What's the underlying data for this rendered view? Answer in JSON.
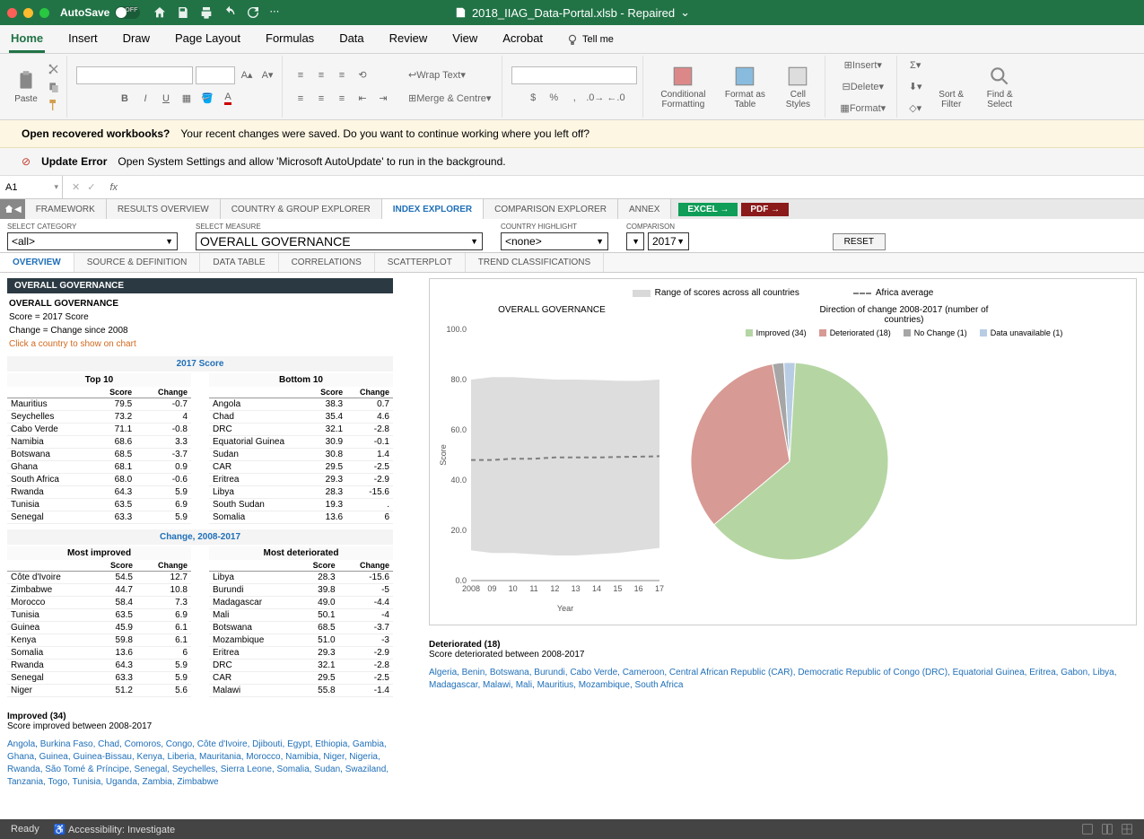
{
  "titlebar": {
    "autosave_label": "AutoSave",
    "doc_title": "2018_IIAG_Data-Portal.xlsb - Repaired"
  },
  "ribbon_tabs": [
    "Home",
    "Insert",
    "Draw",
    "Page Layout",
    "Formulas",
    "Data",
    "Review",
    "View",
    "Acrobat"
  ],
  "tell_me": "Tell me",
  "ribbon": {
    "paste": "Paste",
    "wrap": "Wrap Text",
    "merge": "Merge & Centre",
    "cond_format": "Conditional Formatting",
    "as_table": "Format as Table",
    "cell_styles": "Cell Styles",
    "insert": "Insert",
    "delete": "Delete",
    "format": "Format",
    "sort_filter": "Sort & Filter",
    "find_select": "Find & Select"
  },
  "msg_recover_q": "Open recovered workbooks?",
  "msg_recover_t": "Your recent changes were saved. Do you want to continue working where you left off?",
  "msg_update_h": "Update Error",
  "msg_update_t": "Open System Settings and allow 'Microsoft AutoUpdate' to run in the background.",
  "namebox": "A1",
  "navtabs": [
    "FRAMEWORK",
    "RESULTS OVERVIEW",
    "COUNTRY & GROUP EXPLORER",
    "INDEX EXPLORER",
    "COMPARISON EXPLORER",
    "ANNEX"
  ],
  "nav_active_index": 3,
  "export_excel": "EXCEL →",
  "export_pdf": "PDF →",
  "controls": {
    "cat_label": "SELECT CATEGORY",
    "cat_value": "<all>",
    "measure_label": "SELECT MEASURE",
    "measure_value": "OVERALL GOVERNANCE",
    "country_label": "COUNTRY HIGHLIGHT",
    "country_value": "<none>",
    "compare_label": "COMPARISON",
    "year_value": "2017",
    "reset": "RESET"
  },
  "subtabs": [
    "OVERVIEW",
    "SOURCE & DEFINITION",
    "DATA TABLE",
    "CORRELATIONS",
    "SCATTERPLOT",
    "TREND CLASSIFICATIONS"
  ],
  "black_header": "OVERALL GOVERNANCE",
  "meta": {
    "title": "OVERALL GOVERNANCE",
    "score_line": "Score = 2017 Score",
    "change_line": "Change = Change since 2008",
    "hint": "Click a country to show on chart"
  },
  "score_section": {
    "title": "2017 Score",
    "top_label": "Top 10",
    "bottom_label": "Bottom 10",
    "cols": [
      "",
      "Score",
      "Change"
    ],
    "top": [
      [
        "Mauritius",
        "79.5",
        "-0.7"
      ],
      [
        "Seychelles",
        "73.2",
        "4"
      ],
      [
        "Cabo Verde",
        "71.1",
        "-0.8"
      ],
      [
        "Namibia",
        "68.6",
        "3.3"
      ],
      [
        "Botswana",
        "68.5",
        "-3.7"
      ],
      [
        "Ghana",
        "68.1",
        "0.9"
      ],
      [
        "South Africa",
        "68.0",
        "-0.6"
      ],
      [
        "Rwanda",
        "64.3",
        "5.9"
      ],
      [
        "Tunisia",
        "63.5",
        "6.9"
      ],
      [
        "Senegal",
        "63.3",
        "5.9"
      ]
    ],
    "bottom": [
      [
        "Angola",
        "38.3",
        "0.7"
      ],
      [
        "Chad",
        "35.4",
        "4.6"
      ],
      [
        "DRC",
        "32.1",
        "-2.8"
      ],
      [
        "Equatorial Guinea",
        "30.9",
        "-0.1"
      ],
      [
        "Sudan",
        "30.8",
        "1.4"
      ],
      [
        "CAR",
        "29.5",
        "-2.5"
      ],
      [
        "Eritrea",
        "29.3",
        "-2.9"
      ],
      [
        "Libya",
        "28.3",
        "-15.6"
      ],
      [
        "South Sudan",
        "19.3",
        "."
      ],
      [
        "Somalia",
        "13.6",
        "6"
      ]
    ]
  },
  "change_section": {
    "title": "Change, 2008-2017",
    "improved_label": "Most improved",
    "deteriorated_label": "Most deteriorated",
    "cols": [
      "",
      "Score",
      "Change"
    ],
    "improved": [
      [
        "Côte d'Ivoire",
        "54.5",
        "12.7"
      ],
      [
        "Zimbabwe",
        "44.7",
        "10.8"
      ],
      [
        "Morocco",
        "58.4",
        "7.3"
      ],
      [
        "Tunisia",
        "63.5",
        "6.9"
      ],
      [
        "Guinea",
        "45.9",
        "6.1"
      ],
      [
        "Kenya",
        "59.8",
        "6.1"
      ],
      [
        "Somalia",
        "13.6",
        "6"
      ],
      [
        "Rwanda",
        "64.3",
        "5.9"
      ],
      [
        "Senegal",
        "63.3",
        "5.9"
      ],
      [
        "Niger",
        "51.2",
        "5.6"
      ]
    ],
    "deteriorated": [
      [
        "Libya",
        "28.3",
        "-15.6"
      ],
      [
        "Burundi",
        "39.8",
        "-5"
      ],
      [
        "Madagascar",
        "49.0",
        "-4.4"
      ],
      [
        "Mali",
        "50.1",
        "-4"
      ],
      [
        "Botswana",
        "68.5",
        "-3.7"
      ],
      [
        "Mozambique",
        "51.0",
        "-3"
      ],
      [
        "Eritrea",
        "29.3",
        "-2.9"
      ],
      [
        "DRC",
        "32.1",
        "-2.8"
      ],
      [
        "CAR",
        "29.5",
        "-2.5"
      ],
      [
        "Malawi",
        "55.8",
        "-1.4"
      ]
    ]
  },
  "improved_summary": {
    "title": "Improved (34)",
    "sub": "Score improved between 2008-2017",
    "list": "Angola, Burkina Faso, Chad, Comoros, Congo, Côte d'Ivoire, Djibouti, Egypt, Ethiopia, Gambia, Ghana, Guinea, Guinea-Bissau, Kenya, Liberia, Mauritania, Morocco, Namibia, Niger, Nigeria, Rwanda, São Tomé & Príncipe, Senegal, Seychelles, Sierra Leone, Somalia, Sudan, Swaziland, Tanzania, Togo, Tunisia, Uganda, Zambia, Zimbabwe"
  },
  "deteriorated_summary": {
    "title": "Deteriorated (18)",
    "sub": "Score deteriorated between 2008-2017",
    "list": "Algeria, Benin, Botswana, Burundi, Cabo Verde, Cameroon, Central African Republic (CAR), Democratic Republic of Congo (DRC), Equatorial Guinea, Eritrea, Gabon, Libya, Madagascar, Malawi, Mali, Mauritius, Mozambique, South Africa"
  },
  "line_chart": {
    "title": "OVERALL GOVERNANCE",
    "legend_range": "Range of scores across all countries",
    "legend_avg": "Africa average",
    "y_label": "Score",
    "x_label": "Year",
    "y_ticks": [
      "0.0",
      "20.0",
      "40.0",
      "60.0",
      "80.0",
      "100.0"
    ],
    "x_ticks": [
      "2008",
      "09",
      "10",
      "11",
      "12",
      "13",
      "14",
      "15",
      "16",
      "17"
    ],
    "ylim": [
      0,
      100
    ],
    "range_top": [
      80,
      81,
      81,
      80.5,
      80,
      80,
      79.8,
      79.5,
      79.5,
      80
    ],
    "range_bot": [
      12,
      11,
      11,
      10.5,
      10,
      10,
      10.5,
      11,
      12,
      13
    ],
    "avg": [
      48,
      48,
      48.5,
      48.5,
      49,
      49,
      49,
      49.2,
      49.3,
      49.5
    ],
    "range_color": "#d9d9d9",
    "avg_color": "#7f7f7f"
  },
  "pie_chart": {
    "title": "Direction of change 2008-2017 (number of countries)",
    "slices": [
      {
        "label": "Improved (34)",
        "value": 34,
        "color": "#b5d6a3"
      },
      {
        "label": "Deteriorated (18)",
        "value": 18,
        "color": "#d79a94"
      },
      {
        "label": "No Change (1)",
        "value": 1,
        "color": "#a6a6a6"
      },
      {
        "label": "Data unavailable (1)",
        "value": 1,
        "color": "#b8cde4"
      }
    ]
  },
  "statusbar": {
    "ready": "Ready",
    "access": "Accessibility: Investigate"
  }
}
